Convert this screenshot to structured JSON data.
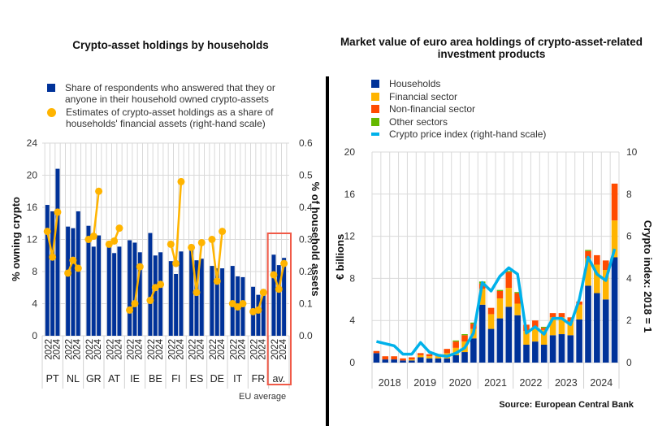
{
  "colors": {
    "households": "#003299",
    "financial": "#FFB400",
    "nonfinancial": "#FF4B00",
    "other": "#65B800",
    "index_line": "#00B1EA",
    "estimates": "#FFB400",
    "highlight_box": "#F05A48",
    "grid": "#D9D9D9"
  },
  "chart_data": [
    {
      "type": "bar",
      "title": "Crypto-asset holdings by households",
      "ylabel": "% owning crypto",
      "y2label": "% of household assets",
      "ylim": [
        0,
        24
      ],
      "y2lim": [
        0,
        0.6
      ],
      "yticks": [
        "0",
        "4",
        "8",
        "12",
        "16",
        "20",
        "24"
      ],
      "y2ticks": [
        "0.0",
        "0.1",
        "0.2",
        "0.3",
        "0.4",
        "0.5",
        "0.6"
      ],
      "grid": true,
      "legend_position": "top",
      "legend": [
        "Share of respondents who answered that they or anyone in their household owned crypto-assets",
        "Estimates of crypto-asset holdings as a share of households' financial assets (right-hand scale)"
      ],
      "year_labels": [
        "2022",
        "2024"
      ],
      "categories": [
        "PT",
        "NL",
        "GR",
        "AT",
        "IE",
        "BE",
        "FI",
        "ES",
        "DE",
        "IT",
        "FR",
        "av."
      ],
      "highlight_note": "EU average",
      "series": [
        {
          "name": "Share of respondents owning crypto-assets",
          "axis": "left",
          "kind": "bar",
          "values": [
            [
              16.3,
              15.5,
              20.8
            ],
            [
              13.6,
              13.4,
              15.5
            ],
            [
              13.7,
              11.1,
              12.5
            ],
            [
              11.6,
              10.3,
              11.1
            ],
            [
              11.9,
              11.6,
              10.4
            ],
            [
              12.8,
              10.0,
              10.4
            ],
            [
              9.3,
              7.7,
              10.5
            ],
            [
              10.8,
              9.4,
              9.6
            ],
            [
              8.7,
              8.4,
              8.4
            ],
            [
              8.7,
              7.4,
              7.3
            ],
            [
              6.1,
              5.1,
              5.8
            ],
            [
              10.1,
              8.8,
              9.7
            ]
          ]
        },
        {
          "name": "Crypto-asset holdings as share of financial assets",
          "axis": "right",
          "kind": "line",
          "values": [
            [
              0.325,
              0.245,
              0.385
            ],
            [
              0.195,
              0.235,
              0.21
            ],
            [
              0.3,
              0.31,
              0.45
            ],
            [
              0.285,
              0.295,
              0.335
            ],
            [
              0.08,
              0.1,
              0.215
            ],
            [
              0.11,
              0.15,
              0.16
            ],
            [
              0.285,
              0.225,
              0.48
            ],
            [
              0.275,
              0.135,
              0.29
            ],
            [
              0.3,
              0.17,
              0.325
            ],
            [
              0.1,
              0.09,
              0.1
            ],
            [
              0.075,
              0.08,
              0.135
            ],
            [
              0.19,
              0.145,
              0.225
            ]
          ]
        }
      ]
    },
    {
      "type": "bar",
      "stacked": true,
      "title": "Market value of euro area holdings of crypto-asset-related investment products",
      "ylabel": "€ billions",
      "y2label": "Crypto index: 2018 = 1",
      "ylim": [
        0,
        20
      ],
      "y2lim": [
        0,
        10
      ],
      "yticks": [
        "0",
        "4",
        "8",
        "12",
        "16",
        "20"
      ],
      "y2ticks": [
        "0",
        "2",
        "4",
        "6",
        "8",
        "10"
      ],
      "grid": true,
      "legend_position": "top-left",
      "categories": [
        "2018",
        "2019",
        "2020",
        "2021",
        "2022",
        "2023",
        "2024"
      ],
      "periods_per_category": 4,
      "series": [
        {
          "name": "Households",
          "values": [
            0.9,
            0.3,
            0.3,
            0.2,
            0.2,
            0.5,
            0.4,
            0.4,
            0.4,
            0.7,
            1.0,
            2.3,
            5.5,
            3.2,
            4.2,
            5.3,
            4.5,
            1.7,
            2.0,
            1.7,
            2.6,
            2.7,
            2.6,
            4.1,
            7.3,
            6.6,
            6.0,
            10.0
          ]
        },
        {
          "name": "Financial sector",
          "values": [
            0.0,
            0.0,
            0.0,
            0.0,
            0.1,
            0.2,
            0.2,
            0.2,
            0.5,
            0.7,
            1.0,
            0.9,
            1.5,
            1.4,
            1.9,
            1.8,
            1.1,
            1.3,
            1.4,
            1.4,
            1.7,
            1.6,
            1.3,
            1.4,
            2.6,
            2.7,
            2.8,
            3.5
          ]
        },
        {
          "name": "Non-financial sector",
          "values": [
            0.2,
            0.3,
            0.3,
            0.2,
            0.2,
            0.2,
            0.2,
            0.2,
            0.4,
            0.6,
            0.6,
            0.5,
            0.5,
            0.6,
            0.7,
            1.5,
            1.0,
            0.6,
            0.6,
            0.2,
            0.4,
            0.4,
            0.4,
            0.3,
            0.7,
            0.9,
            0.9,
            3.5
          ]
        },
        {
          "name": "Other sectors",
          "values": [
            0.0,
            0.0,
            0.0,
            0.0,
            0.0,
            0.0,
            0.0,
            0.0,
            0.0,
            0.1,
            0.1,
            0.1,
            0.2,
            0.0,
            0.1,
            0.1,
            0.1,
            0.0,
            0.0,
            0.1,
            0.0,
            0.0,
            0.0,
            0.0,
            0.1,
            0.0,
            0.0,
            0.0
          ]
        },
        {
          "name": "Crypto price index (right-hand scale)",
          "axis": "right",
          "kind": "line",
          "values": [
            1.0,
            0.9,
            0.8,
            0.4,
            0.4,
            0.95,
            0.5,
            0.35,
            0.3,
            0.45,
            0.7,
            1.4,
            3.8,
            3.4,
            4.1,
            4.5,
            4.2,
            1.4,
            1.7,
            1.35,
            2.1,
            2.1,
            1.8,
            3.0,
            5.0,
            4.2,
            3.9,
            5.4
          ]
        }
      ],
      "source": "Source: European Central Bank"
    }
  ],
  "left_legend": {
    "item1": "Share of respondents who answered that they or anyone in their household owned crypto-assets",
    "item2": "Estimates of crypto-asset holdings as a share of households' financial assets (right-hand scale)"
  },
  "right_legend": {
    "item1": "Households",
    "item2": "Financial sector",
    "item3": "Non-financial sector",
    "item4": "Other sectors",
    "item5": "Crypto price index (right-hand scale)"
  },
  "eu_average_note": "EU average",
  "source": "Source: European Central Bank"
}
